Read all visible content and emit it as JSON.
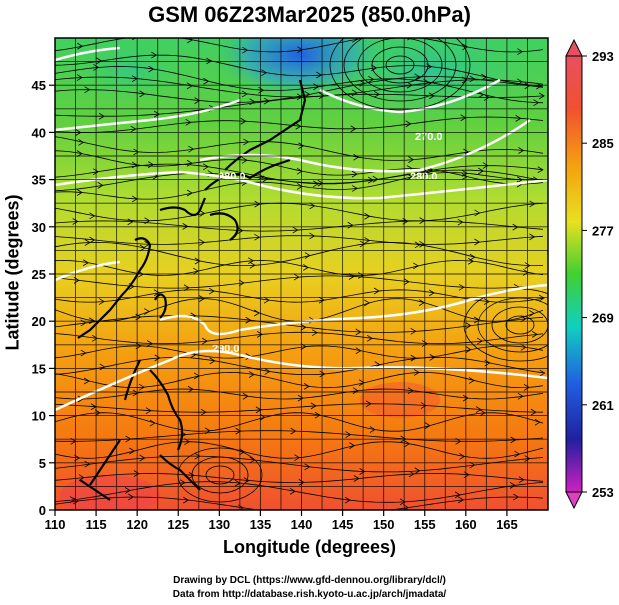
{
  "title": "GSM 06Z23Mar2025 (850.0hPa)",
  "xlabel": "Longitude (degrees)",
  "ylabel": "Latitude  (degrees)",
  "credits": {
    "line1": "Drawing by DCL (https://www.gfd-dennou.org/library/dcl/)",
    "line2": "Data from http://database.rish.kyoto-u.ac.jp/arch/jmadata/"
  },
  "map": {
    "x_range": [
      110,
      170
    ],
    "y_range": [
      0,
      50
    ],
    "x_ticks": [
      "110",
      "115",
      "120",
      "125",
      "130",
      "135",
      "140",
      "145",
      "150",
      "155",
      "160",
      "165"
    ],
    "y_ticks": [
      "0",
      "5",
      "10",
      "15",
      "20",
      "25",
      "30",
      "35",
      "40",
      "45"
    ],
    "contour_labels": [
      "290.0",
      "280.0",
      "280.0",
      "270.0"
    ],
    "grid": true,
    "field": "temperature with wind streamlines"
  },
  "colorbar": {
    "labels": [
      "293",
      "285",
      "277",
      "269",
      "261",
      "253"
    ],
    "colors": [
      "#e0507a",
      "#f05030",
      "#f59a10",
      "#e8e020",
      "#40d030",
      "#10d0c0",
      "#2050e0",
      "#2020a0",
      "#d020c0"
    ]
  }
}
